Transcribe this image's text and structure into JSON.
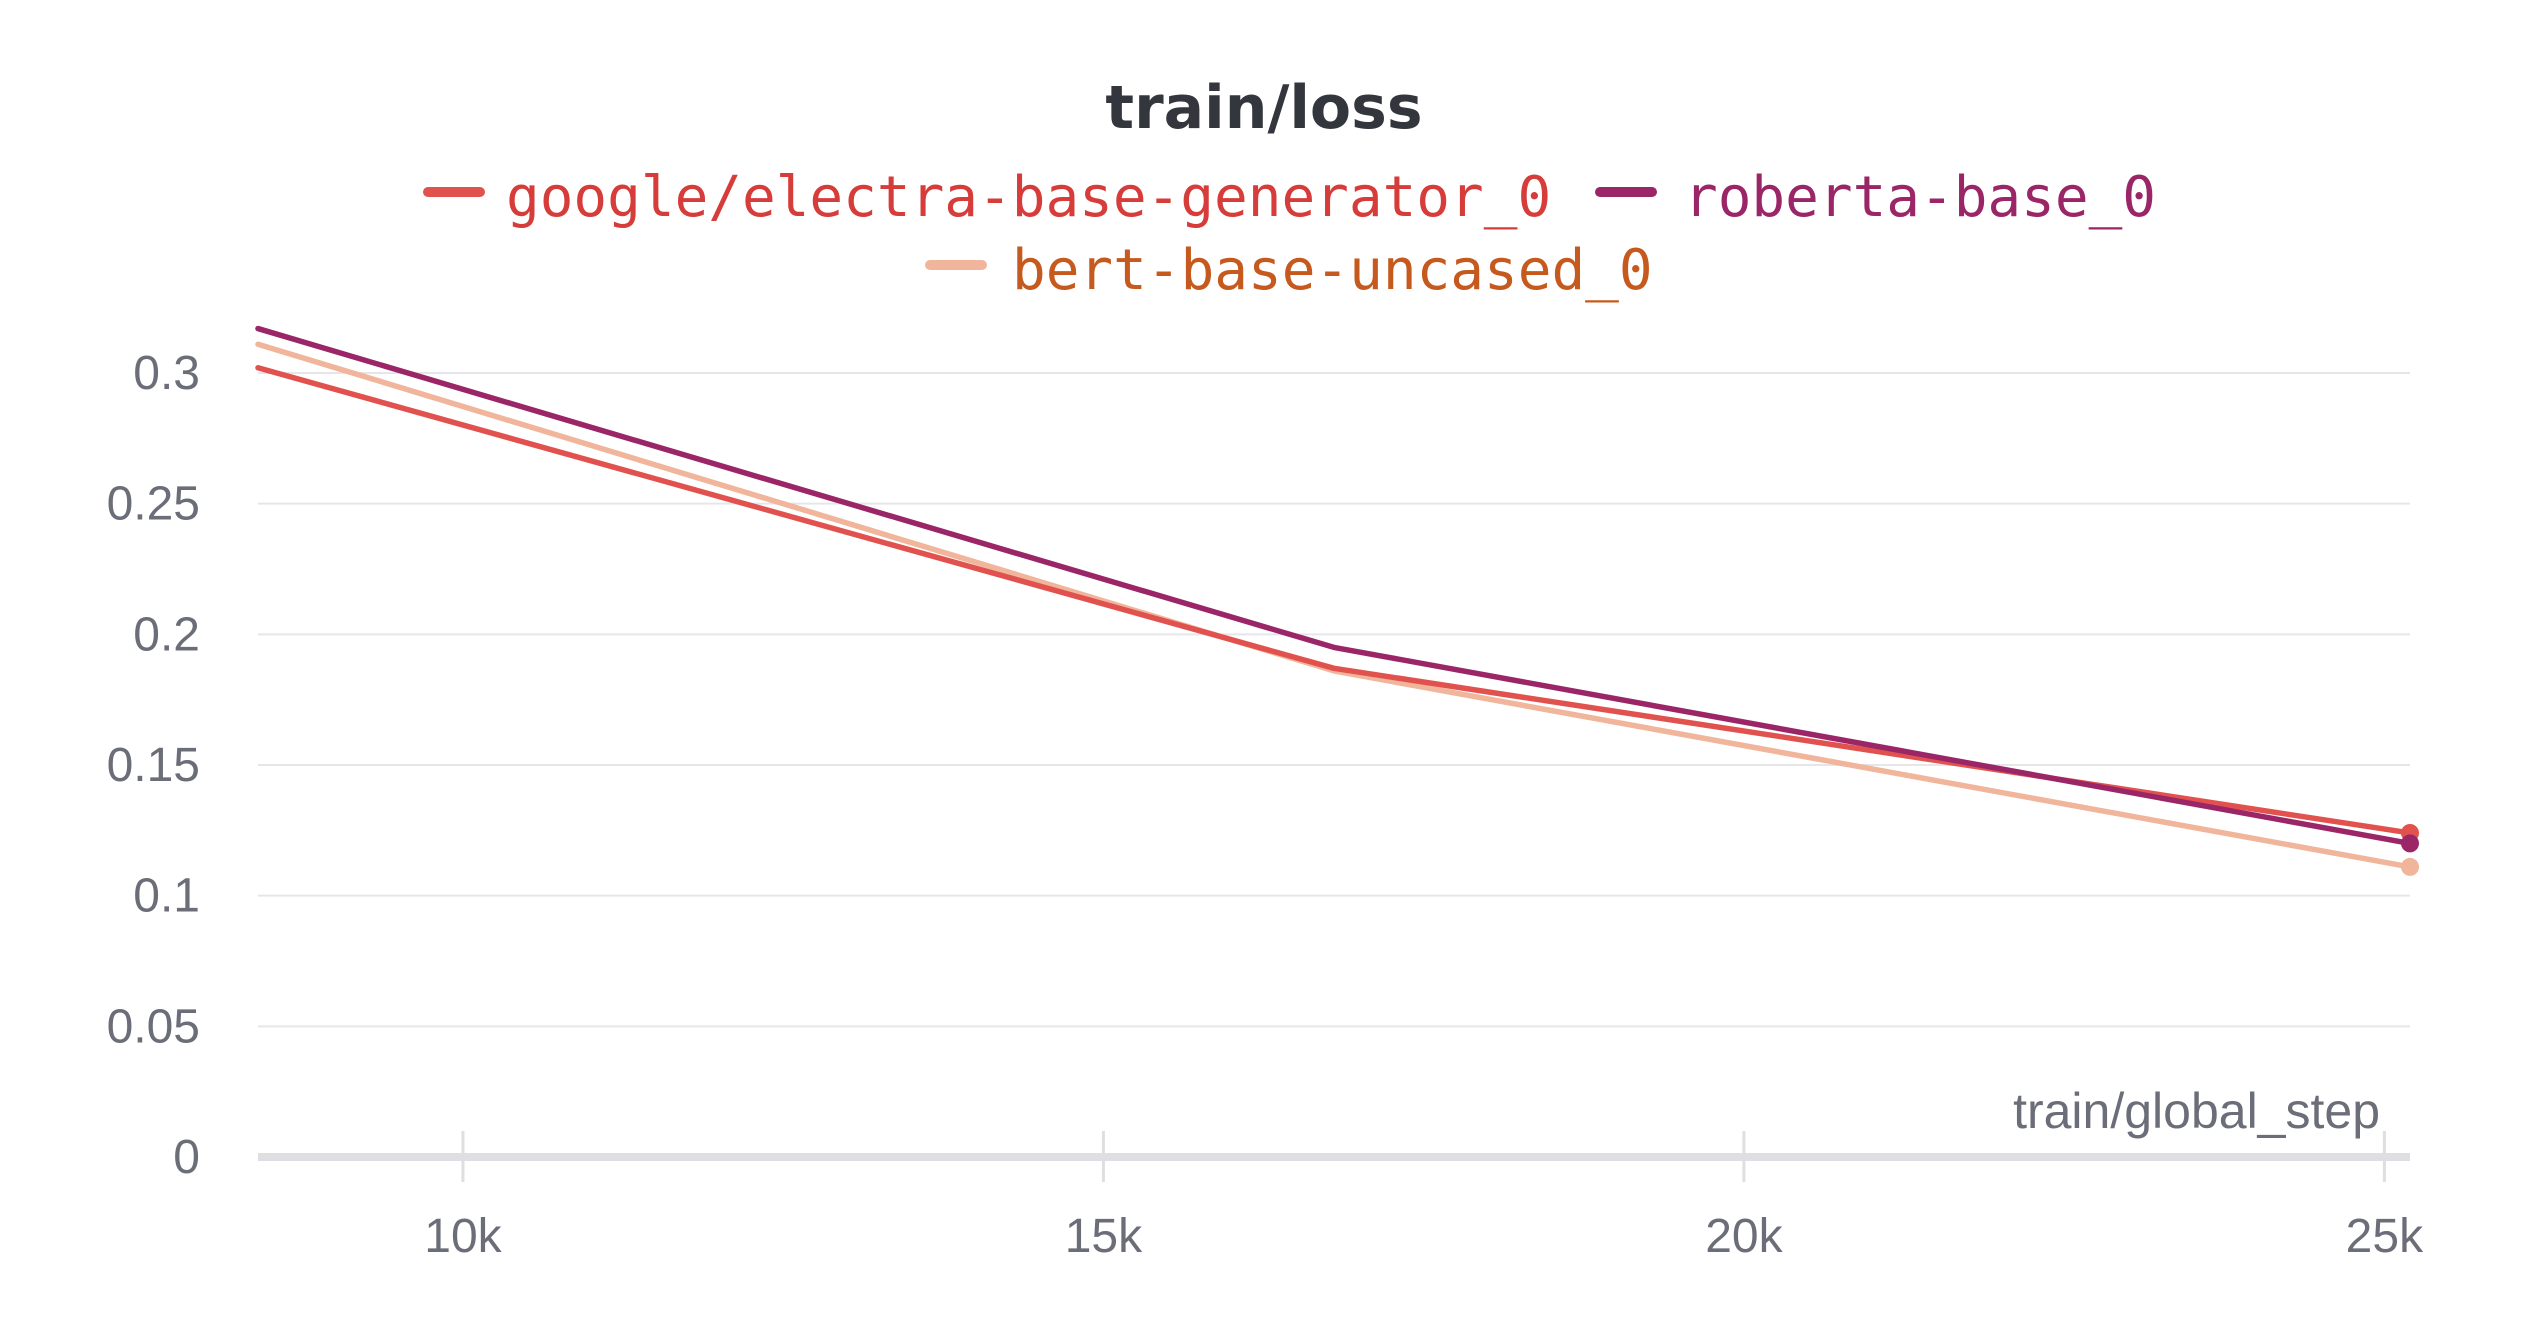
{
  "chart_data": {
    "type": "line",
    "title": "train/loss",
    "xlabel": "train/global_step",
    "ylabel": "",
    "xlim": [
      8400,
      25200
    ],
    "ylim": [
      0,
      0.3
    ],
    "x_ticks": [
      10000,
      15000,
      20000,
      25000
    ],
    "x_tick_labels": [
      "10k",
      "15k",
      "20k",
      "25k"
    ],
    "y_ticks": [
      0,
      0.05,
      0.1,
      0.15,
      0.2,
      0.25,
      0.3
    ],
    "y_tick_labels": [
      "0",
      "0.05",
      "0.1",
      "0.15",
      "0.2",
      "0.25",
      "0.3"
    ],
    "grid": true,
    "legend_position": "top-center",
    "series": [
      {
        "name": "google/electra-base-generator_0",
        "line_color": "#e1524f",
        "text_color": "#d63c3a",
        "x": [
          8400,
          16800,
          25200
        ],
        "y": [
          0.302,
          0.187,
          0.124
        ]
      },
      {
        "name": "roberta-base_0",
        "line_color": "#9b2667",
        "text_color": "#9b2667",
        "x": [
          8400,
          16800,
          25200
        ],
        "y": [
          0.317,
          0.195,
          0.12
        ]
      },
      {
        "name": "bert-base-uncased_0",
        "line_color": "#f0b59a",
        "text_color": "#c65a1e",
        "x": [
          8400,
          16800,
          25200
        ],
        "y": [
          0.311,
          0.186,
          0.111
        ]
      }
    ]
  }
}
